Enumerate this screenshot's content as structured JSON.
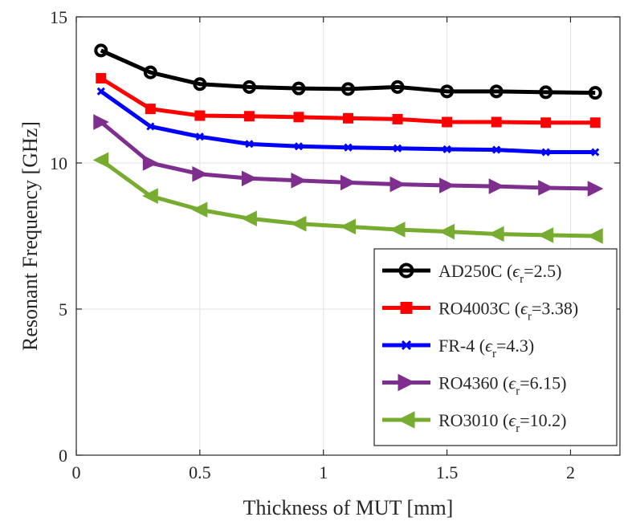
{
  "chart_data": {
    "type": "line",
    "title": "",
    "xlabel": "Thickness of MUT [mm]",
    "ylabel": "Resonant Frequency [GHz]",
    "xlim": [
      0,
      2.2
    ],
    "ylim": [
      0,
      15
    ],
    "x_ticks": [
      0,
      0.5,
      1,
      1.5,
      2
    ],
    "x_tick_labels": [
      "0",
      "0.5",
      "1",
      "1.5",
      "2"
    ],
    "y_ticks": [
      0,
      5,
      10,
      15
    ],
    "y_tick_labels": [
      "0",
      "5",
      "10",
      "15"
    ],
    "grid": true,
    "legend_position": "bottom-right",
    "x": [
      0.1,
      0.3,
      0.5,
      0.7,
      0.9,
      1.1,
      1.3,
      1.5,
      1.7,
      1.9,
      2.1
    ],
    "series": [
      {
        "name_main": "AD250C (",
        "name_sym": "ϵ",
        "name_sub": "r",
        "name_value": "=2.5)",
        "color": "#000000",
        "marker": "circle",
        "values": [
          13.85,
          13.1,
          12.7,
          12.6,
          12.55,
          12.53,
          12.6,
          12.45,
          12.45,
          12.42,
          12.4
        ]
      },
      {
        "name_main": "RO4003C (",
        "name_sym": "ϵ",
        "name_sub": "r",
        "name_value": "=3.38)",
        "color": "#ff0000",
        "marker": "square",
        "values": [
          12.9,
          11.85,
          11.62,
          11.6,
          11.57,
          11.53,
          11.5,
          11.4,
          11.4,
          11.38,
          11.38
        ]
      },
      {
        "name_main": "FR-4 (",
        "name_sym": "ϵ",
        "name_sub": "r",
        "name_value": "=4.3)",
        "color": "#0000ff",
        "marker": "x",
        "values": [
          12.45,
          11.25,
          10.9,
          10.65,
          10.57,
          10.53,
          10.5,
          10.47,
          10.45,
          10.37,
          10.37
        ]
      },
      {
        "name_main": "RO4360 (",
        "name_sym": "ϵ",
        "name_sub": "r",
        "name_value": "=6.15)",
        "color": "#7e2f8e",
        "marker": "triangle-right",
        "values": [
          11.4,
          10.0,
          9.62,
          9.47,
          9.4,
          9.33,
          9.27,
          9.23,
          9.2,
          9.15,
          9.12
        ]
      },
      {
        "name_main": "RO3010 (",
        "name_sym": "ϵ",
        "name_sub": "r",
        "name_value": "=10.2)",
        "color": "#77ac30",
        "marker": "triangle-left",
        "values": [
          10.1,
          8.87,
          8.4,
          8.1,
          7.92,
          7.82,
          7.72,
          7.65,
          7.57,
          7.53,
          7.5
        ]
      }
    ]
  }
}
